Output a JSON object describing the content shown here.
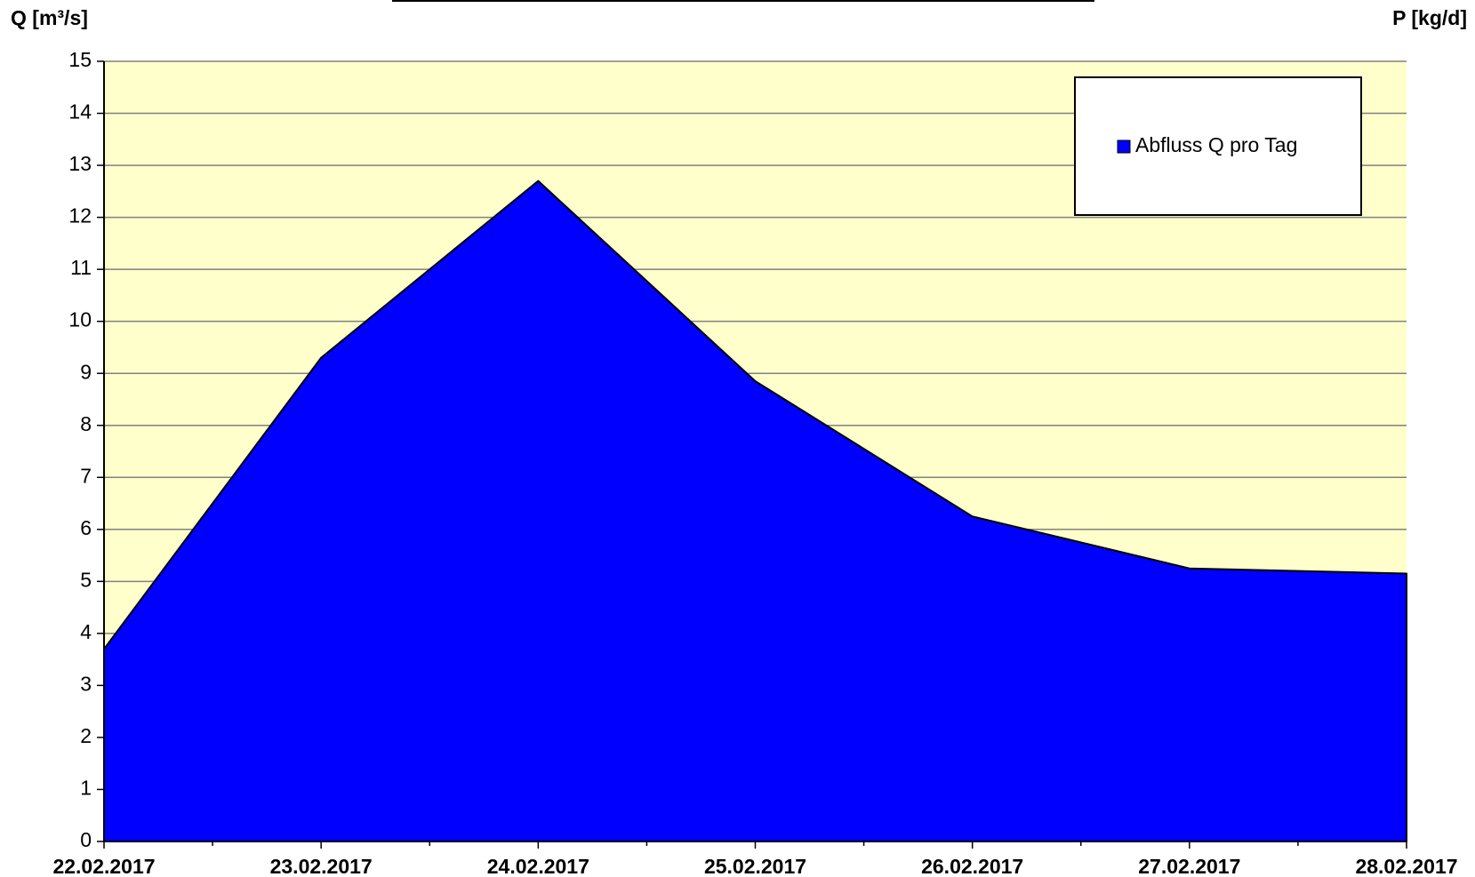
{
  "chart_data": {
    "type": "area",
    "y_label": "Q [m³/s]",
    "y2_label": "P [kg/d]",
    "x": [
      "22.02.2017",
      "23.02.2017",
      "24.02.2017",
      "25.02.2017",
      "26.02.2017",
      "27.02.2017",
      "28.02.2017"
    ],
    "series": [
      {
        "name": "Abfluss Q pro Tag",
        "color": "#0000ff",
        "values": [
          3.7,
          9.3,
          12.7,
          8.85,
          6.25,
          5.25,
          5.15
        ]
      }
    ],
    "ylim": [
      0,
      15
    ],
    "yticks": [
      0,
      1,
      2,
      3,
      4,
      5,
      6,
      7,
      8,
      9,
      10,
      11,
      12,
      13,
      14,
      15
    ],
    "grid": true,
    "legend": "upper right",
    "background": "#ffffcc"
  }
}
